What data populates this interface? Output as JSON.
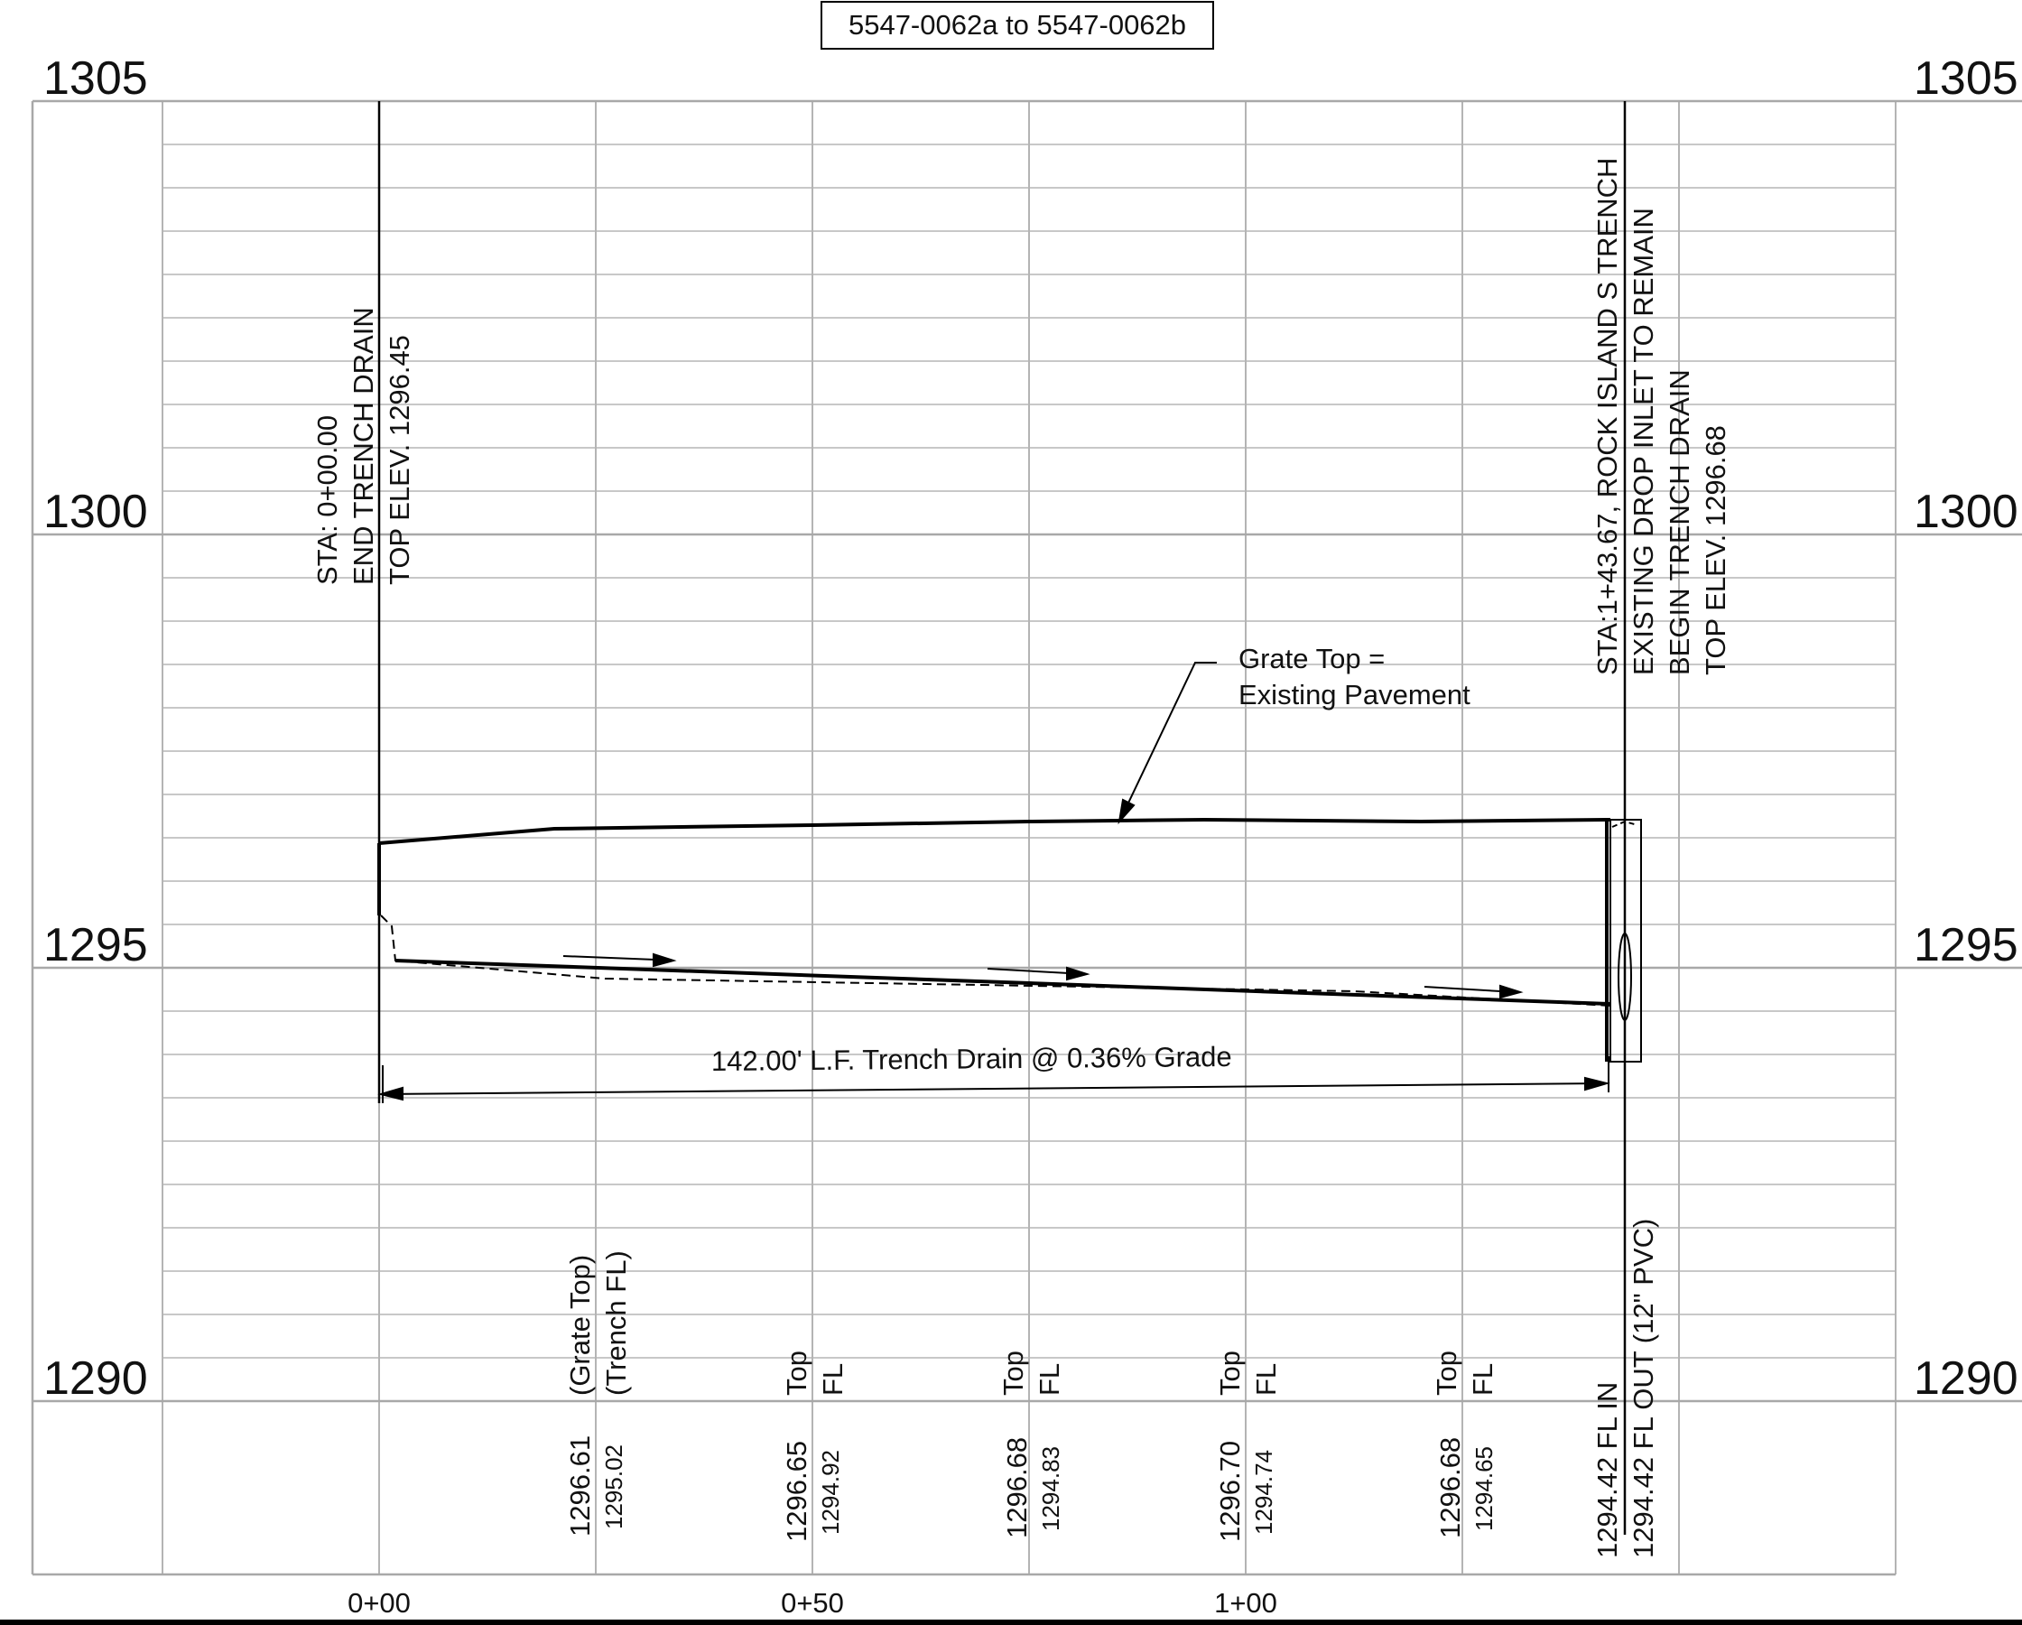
{
  "title": "5547-0062a to 5547-0062b",
  "elevations": [
    "1305",
    "1300",
    "1295",
    "1290"
  ],
  "stations": [
    "0+00",
    "0+50",
    "1+00"
  ],
  "start_callout": [
    "STA: 0+00.00",
    "END TRENCH DRAIN",
    "TOP ELEV. 1296.45"
  ],
  "end_callout": [
    "STA:1+43.67, ROCK ISLAND S TRENCH",
    "EXISTING DROP INLET TO REMAIN",
    "BEGIN TRENCH DRAIN",
    "TOP ELEV. 1296.68"
  ],
  "grate_note": [
    "Grate Top =",
    "Existing Pavement"
  ],
  "dimension_note": "142.00' L.F. Trench Drain @ 0.36% Grade",
  "band_header": [
    "(Grate Top)",
    "(Trench FL)"
  ],
  "band_columns": [
    {
      "top_label": "Top",
      "fl_label": "FL",
      "top": "1296.65",
      "fl": "1294.92"
    },
    {
      "top_label": "Top",
      "fl_label": "FL",
      "top": "1296.68",
      "fl": "1294.83"
    },
    {
      "top_label": "Top",
      "fl_label": "FL",
      "top": "1296.70",
      "fl": "1294.74"
    },
    {
      "top_label": "Top",
      "fl_label": "FL",
      "top": "1296.68",
      "fl": "1294.65"
    }
  ],
  "first_values": {
    "top": "1296.61",
    "fl": "1295.02"
  },
  "inlet_labels": {
    "fl_in": "1294.42 FL IN",
    "fl_out": "1294.42 FL OUT (12\" PVC)"
  }
}
